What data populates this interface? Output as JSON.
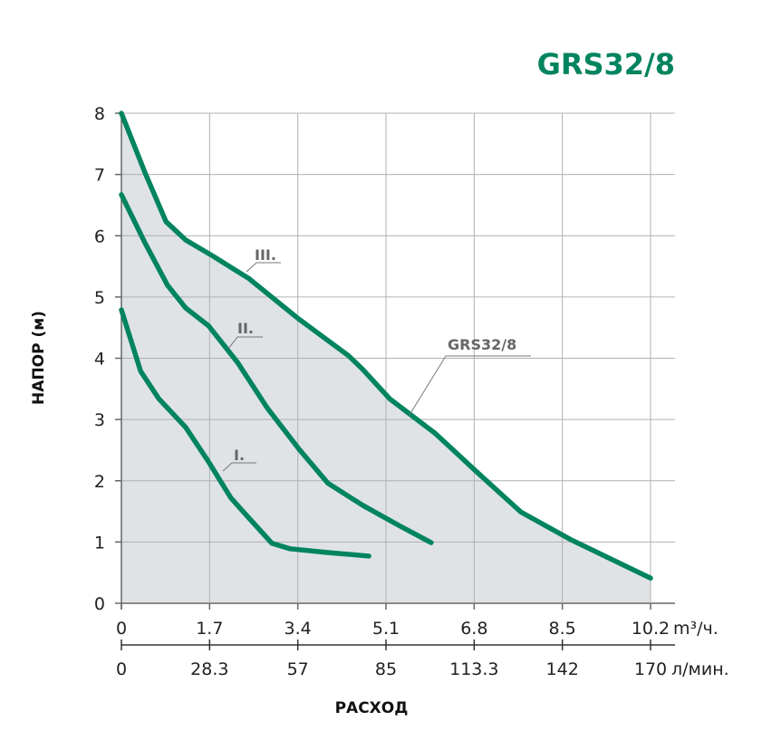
{
  "chart_data": {
    "type": "line",
    "title": "GRS32/8",
    "xlabel": "РАСХОД",
    "ylabel": "НАПОР (м)",
    "xlim": [
      0,
      10.2
    ],
    "ylim": [
      0,
      8
    ],
    "grid": true,
    "x_ticks": [
      "0",
      "1.7",
      "3.4",
      "5.1",
      "6.8",
      "8.5",
      "10.2"
    ],
    "x_unit": "m³/ч.",
    "x2_ticks": [
      "0",
      "28.3",
      "57",
      "85",
      "113.3",
      "142",
      "170"
    ],
    "x2_unit": "л/мин.",
    "y_ticks": [
      "0",
      "1",
      "2",
      "3",
      "4",
      "5",
      "6",
      "7",
      "8"
    ],
    "colors": {
      "line": "#00845f",
      "fill": "#dfe3e6",
      "grid": "#b0b0b0",
      "title": "#00845f"
    },
    "area_label": "GRS32/8",
    "series": [
      {
        "name": "III.",
        "x": [
          0,
          0.45,
          0.86,
          1.24,
          1.76,
          2.46,
          3.42,
          4.38,
          4.65,
          5.17,
          6.04,
          6.83,
          7.7,
          8.66,
          10.2
        ],
        "y": [
          8.0,
          7.04,
          6.23,
          5.93,
          5.67,
          5.3,
          4.64,
          4.04,
          3.82,
          3.34,
          2.78,
          2.16,
          1.49,
          1.04,
          0.41
        ]
      },
      {
        "name": "II.",
        "x": [
          0,
          0.45,
          0.89,
          1.24,
          1.68,
          2.24,
          2.81,
          3.42,
          3.98,
          4.65,
          5.35,
          5.97
        ],
        "y": [
          6.67,
          5.89,
          5.19,
          4.82,
          4.53,
          3.93,
          3.19,
          2.52,
          1.96,
          1.6,
          1.27,
          0.99
        ]
      },
      {
        "name": "I.",
        "x": [
          0,
          0.37,
          0.72,
          1.24,
          1.68,
          2.11,
          2.46,
          2.9,
          3.25,
          3.95,
          4.77
        ],
        "y": [
          4.79,
          3.79,
          3.34,
          2.87,
          2.31,
          1.72,
          1.39,
          0.98,
          0.89,
          0.83,
          0.77
        ]
      }
    ]
  }
}
